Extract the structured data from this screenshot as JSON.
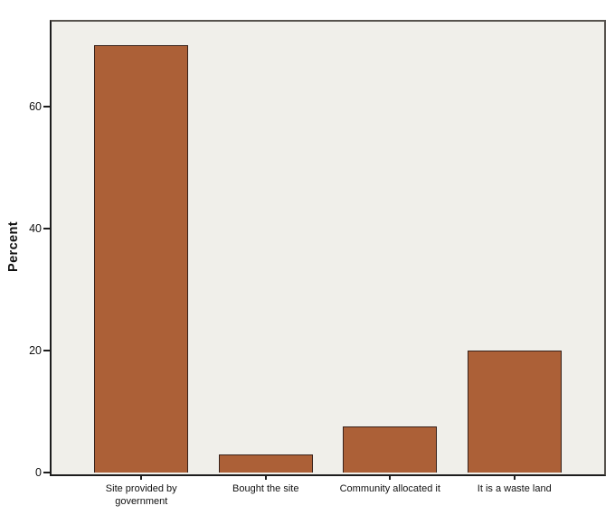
{
  "chart_data": {
    "type": "bar",
    "title": "",
    "ylabel": "Percent",
    "xlabel": "",
    "categories": [
      "Site provided by\ngovernment",
      "Bought the site",
      "Community allocated it",
      "It is a waste land"
    ],
    "values": [
      70,
      3,
      7.5,
      20
    ],
    "ylim": [
      0,
      74.2
    ],
    "yticks": [
      0,
      20,
      40,
      60
    ],
    "grid": false,
    "legend_position": "none",
    "bar_color": "#ac6037",
    "bar_border_color": "#37211a",
    "plot_background": "#f0efea",
    "frame_color": "#57534e",
    "axis_color": "#1d1d1d",
    "text_color": "#111111"
  }
}
